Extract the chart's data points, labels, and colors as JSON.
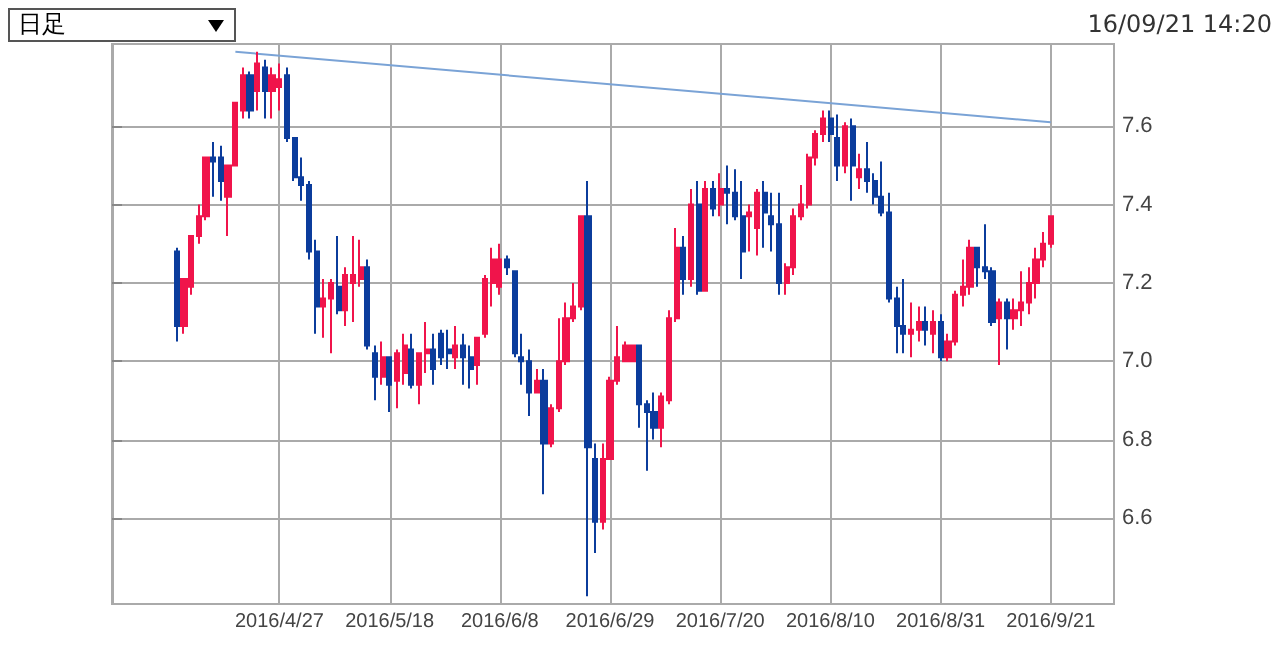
{
  "chart_data": {
    "type": "candlestick",
    "annotations": [
      "日足",
      "16/09/21 14:20"
    ],
    "categories": [
      null,
      null,
      null,
      null,
      null,
      null,
      null,
      null,
      null,
      null,
      null,
      null,
      null,
      null,
      "2016/4/27",
      null,
      null,
      null,
      null,
      null,
      null,
      null,
      null,
      null,
      null,
      null,
      null,
      null,
      null,
      "2016/5/18",
      null,
      null,
      null,
      null,
      null,
      null,
      null,
      null,
      null,
      null,
      null,
      null,
      null,
      null,
      "2016/6/8",
      null,
      null,
      null,
      null,
      null,
      null,
      null,
      null,
      null,
      null,
      null,
      null,
      null,
      null,
      "2016/6/29",
      null,
      null,
      null,
      null,
      null,
      null,
      null,
      null,
      null,
      null,
      null,
      null,
      null,
      null,
      "2016/7/20",
      null,
      null,
      null,
      null,
      null,
      null,
      null,
      null,
      null,
      null,
      null,
      null,
      null,
      null,
      "2016/8/10",
      null,
      null,
      null,
      null,
      null,
      null,
      null,
      null,
      null,
      null,
      null,
      null,
      null,
      null,
      "2016/8/31",
      null,
      null,
      null,
      null,
      null,
      null,
      null,
      null,
      null,
      null,
      null,
      null,
      null,
      null,
      "2016/9/21"
    ],
    "series": [
      {
        "type": "line",
        "color": "#7aa3d6",
        "values": [
          null,
          null,
          null,
          null,
          null,
          null,
          null,
          null,
          7.79,
          null,
          null,
          null,
          null,
          null,
          null,
          null,
          null,
          null,
          null,
          null,
          null,
          null,
          null,
          null,
          null,
          null,
          null,
          null,
          null,
          null,
          null,
          null,
          null,
          null,
          null,
          null,
          null,
          null,
          null,
          null,
          null,
          null,
          null,
          null,
          null,
          null,
          null,
          null,
          null,
          null,
          null,
          null,
          null,
          null,
          null,
          null,
          null,
          null,
          null,
          null,
          null,
          null,
          null,
          null,
          null,
          null,
          null,
          null,
          null,
          null,
          null,
          null,
          null,
          null,
          null,
          null,
          null,
          null,
          null,
          null,
          null,
          null,
          null,
          null,
          null,
          null,
          null,
          null,
          null,
          null,
          null,
          null,
          null,
          null,
          null,
          null,
          null,
          null,
          null,
          null,
          null,
          null,
          null,
          null,
          null,
          null,
          null,
          null,
          null,
          null,
          null,
          null,
          null,
          null,
          null,
          null,
          null,
          null,
          null,
          7.61
        ]
      },
      {
        "ohlc": [
          [
            7.28,
            7.29,
            7.05,
            7.09
          ],
          [
            7.09,
            7.21,
            7.07,
            7.21
          ],
          [
            7.19,
            7.32,
            7.17,
            7.32
          ],
          [
            7.32,
            7.4,
            7.3,
            7.37
          ],
          [
            7.37,
            7.52,
            7.36,
            7.52
          ],
          [
            7.52,
            7.56,
            7.42,
            7.51
          ],
          [
            7.52,
            7.55,
            7.41,
            7.46
          ],
          [
            7.42,
            7.5,
            7.32,
            7.5
          ],
          [
            7.5,
            7.66,
            7.5,
            7.66
          ],
          [
            7.64,
            7.75,
            7.62,
            7.73
          ],
          [
            7.73,
            7.74,
            7.62,
            7.64
          ],
          [
            7.69,
            7.79,
            7.64,
            7.76
          ],
          [
            7.75,
            7.77,
            7.62,
            7.69
          ],
          [
            7.69,
            7.75,
            7.62,
            7.73
          ],
          [
            7.7,
            7.76,
            7.64,
            7.72
          ],
          [
            7.73,
            7.75,
            7.56,
            7.57
          ],
          [
            7.57,
            7.57,
            7.46,
            7.47
          ],
          [
            7.47,
            7.52,
            7.41,
            7.45
          ],
          [
            7.45,
            7.46,
            7.26,
            7.28
          ],
          [
            7.28,
            7.31,
            7.07,
            7.14
          ],
          [
            7.14,
            7.21,
            7.06,
            7.16
          ],
          [
            7.16,
            7.21,
            7.02,
            7.2
          ],
          [
            7.19,
            7.32,
            7.12,
            7.13
          ],
          [
            7.13,
            7.24,
            7.09,
            7.22
          ],
          [
            7.2,
            7.32,
            7.1,
            7.22
          ],
          [
            7.21,
            7.31,
            7.19,
            7.24
          ],
          [
            7.24,
            7.26,
            7.03,
            7.04
          ],
          [
            7.02,
            7.04,
            6.9,
            6.96
          ],
          [
            6.96,
            7.05,
            6.94,
            7.01
          ],
          [
            7.01,
            7.01,
            6.87,
            6.94
          ],
          [
            6.95,
            7.03,
            6.88,
            7.02
          ],
          [
            6.97,
            7.07,
            6.94,
            7.04
          ],
          [
            7.03,
            7.07,
            6.93,
            6.94
          ],
          [
            6.94,
            7.02,
            6.89,
            7.02
          ],
          [
            7.02,
            7.1,
            6.97,
            7.03
          ],
          [
            7.03,
            7.07,
            6.94,
            6.98
          ],
          [
            7.07,
            7.08,
            6.99,
            7.01
          ],
          [
            7.03,
            7.08,
            6.98,
            7.02
          ],
          [
            7.01,
            7.09,
            6.98,
            7.04
          ],
          [
            7.04,
            7.07,
            6.94,
            7.01
          ],
          [
            7.01,
            7.04,
            6.93,
            6.98
          ],
          [
            6.99,
            7.06,
            6.94,
            7.06
          ],
          [
            7.07,
            7.22,
            7.06,
            7.21
          ],
          [
            7.2,
            7.29,
            7.14,
            7.26
          ],
          [
            7.19,
            7.3,
            7.17,
            7.26
          ],
          [
            7.26,
            7.27,
            7.22,
            7.24
          ],
          [
            7.23,
            7.23,
            7.01,
            7.02
          ],
          [
            7.01,
            7.07,
            6.94,
            7.0
          ],
          [
            7.0,
            7.03,
            6.86,
            6.92
          ],
          [
            6.92,
            6.98,
            6.92,
            6.95
          ],
          [
            6.95,
            6.98,
            6.66,
            6.79
          ],
          [
            6.79,
            6.89,
            6.78,
            6.88
          ],
          [
            6.88,
            7.11,
            6.87,
            7.0
          ],
          [
            7.0,
            7.15,
            6.99,
            7.11
          ],
          [
            7.11,
            7.2,
            7.1,
            7.14
          ],
          [
            7.14,
            7.37,
            7.13,
            7.37
          ],
          [
            7.37,
            7.46,
            6.4,
            6.78
          ],
          [
            6.75,
            6.79,
            6.51,
            6.59
          ],
          [
            6.59,
            6.79,
            6.57,
            6.75
          ],
          [
            6.75,
            6.96,
            6.75,
            6.95
          ],
          [
            6.95,
            7.09,
            6.94,
            7.01
          ],
          [
            7.0,
            7.05,
            7.0,
            7.04
          ],
          [
            7.0,
            7.04,
            7.0,
            7.04
          ],
          [
            7.04,
            7.04,
            6.83,
            6.89
          ],
          [
            6.89,
            6.9,
            6.72,
            6.87
          ],
          [
            6.87,
            6.92,
            6.8,
            6.83
          ],
          [
            6.83,
            6.92,
            6.78,
            6.91
          ],
          [
            6.9,
            7.13,
            6.89,
            7.11
          ],
          [
            7.11,
            7.34,
            7.1,
            7.29
          ],
          [
            7.29,
            7.32,
            7.17,
            7.21
          ],
          [
            7.21,
            7.44,
            7.19,
            7.4
          ],
          [
            7.4,
            7.46,
            7.17,
            7.18
          ],
          [
            7.18,
            7.46,
            7.18,
            7.44
          ],
          [
            7.44,
            7.46,
            7.37,
            7.39
          ],
          [
            7.4,
            7.48,
            7.37,
            7.44
          ],
          [
            7.44,
            7.5,
            7.35,
            7.43
          ],
          [
            7.43,
            7.49,
            7.36,
            7.37
          ],
          [
            7.37,
            7.46,
            7.21,
            7.28
          ],
          [
            7.37,
            7.4,
            7.28,
            7.38
          ],
          [
            7.34,
            7.44,
            7.27,
            7.43
          ],
          [
            7.43,
            7.46,
            7.29,
            7.38
          ],
          [
            7.37,
            7.43,
            7.28,
            7.35
          ],
          [
            7.35,
            7.43,
            7.17,
            7.2
          ],
          [
            7.2,
            7.25,
            7.17,
            7.24
          ],
          [
            7.24,
            7.39,
            7.22,
            7.37
          ],
          [
            7.37,
            7.45,
            7.36,
            7.4
          ],
          [
            7.4,
            7.53,
            7.39,
            7.52
          ],
          [
            7.52,
            7.59,
            7.5,
            7.58
          ],
          [
            7.58,
            7.64,
            7.56,
            7.62
          ],
          [
            7.62,
            7.64,
            7.56,
            7.58
          ],
          [
            7.57,
            7.63,
            7.46,
            7.5
          ],
          [
            7.5,
            7.61,
            7.48,
            7.6
          ],
          [
            7.6,
            7.62,
            7.41,
            7.5
          ],
          [
            7.47,
            7.53,
            7.44,
            7.49
          ],
          [
            7.49,
            7.56,
            7.43,
            7.46
          ],
          [
            7.46,
            7.48,
            7.4,
            7.42
          ],
          [
            7.42,
            7.51,
            7.37,
            7.38
          ],
          [
            7.38,
            7.43,
            7.15,
            7.16
          ],
          [
            7.16,
            7.19,
            7.02,
            7.09
          ],
          [
            7.09,
            7.21,
            7.02,
            7.07
          ],
          [
            7.07,
            7.15,
            7.01,
            7.08
          ],
          [
            7.08,
            7.14,
            7.05,
            7.1
          ],
          [
            7.1,
            7.14,
            7.04,
            7.08
          ],
          [
            7.07,
            7.13,
            7.02,
            7.1
          ],
          [
            7.1,
            7.12,
            7.0,
            7.01
          ],
          [
            7.01,
            7.07,
            7.0,
            7.05
          ],
          [
            7.05,
            7.18,
            7.04,
            7.17
          ],
          [
            7.17,
            7.26,
            7.14,
            7.19
          ],
          [
            7.19,
            7.31,
            7.17,
            7.29
          ],
          [
            7.29,
            7.29,
            7.19,
            7.24
          ],
          [
            7.24,
            7.35,
            7.21,
            7.23
          ],
          [
            7.23,
            7.24,
            7.09,
            7.1
          ],
          [
            7.11,
            7.16,
            6.99,
            7.15
          ],
          [
            7.15,
            7.16,
            7.03,
            7.11
          ],
          [
            7.11,
            7.16,
            7.08,
            7.13
          ],
          [
            7.13,
            7.23,
            7.09,
            7.15
          ],
          [
            7.15,
            7.24,
            7.12,
            7.2
          ],
          [
            7.2,
            7.29,
            7.16,
            7.26
          ],
          [
            7.26,
            7.33,
            7.24,
            7.3
          ],
          [
            7.3,
            7.37,
            7.29,
            7.37
          ]
        ],
        "colors": [
          "#0b3c9c",
          "#f0144b",
          "#f0144b",
          "#f0144b",
          "#f0144b",
          "#0b3c9c",
          "#0b3c9c",
          "#f0144b",
          "#f0144b",
          "#f0144b",
          "#0b3c9c",
          "#f0144b",
          "#0b3c9c",
          "#f0144b",
          "#f0144b",
          "#0b3c9c",
          "#0b3c9c",
          "#0b3c9c",
          "#0b3c9c",
          "#0b3c9c",
          "#f0144b",
          "#f0144b",
          "#0b3c9c",
          "#f0144b",
          "#f0144b",
          "#f0144b",
          "#0b3c9c",
          "#0b3c9c",
          "#f0144b",
          "#0b3c9c",
          "#f0144b",
          "#f0144b",
          "#0b3c9c",
          "#f0144b",
          "#f0144b",
          "#0b3c9c",
          "#0b3c9c",
          "#0b3c9c",
          "#f0144b",
          "#0b3c9c",
          "#0b3c9c",
          "#f0144b",
          "#f0144b",
          "#f0144b",
          "#f0144b",
          "#0b3c9c",
          "#0b3c9c",
          "#0b3c9c",
          "#0b3c9c",
          "#f0144b",
          "#0b3c9c",
          "#f0144b",
          "#f0144b",
          "#f0144b",
          "#f0144b",
          "#f0144b",
          "#0b3c9c",
          "#0b3c9c",
          "#f0144b",
          "#f0144b",
          "#f0144b",
          "#f0144b",
          "#f0144b",
          "#0b3c9c",
          "#0b3c9c",
          "#0b3c9c",
          "#f0144b",
          "#f0144b",
          "#f0144b",
          "#0b3c9c",
          "#f0144b",
          "#0b3c9c",
          "#f0144b",
          "#0b3c9c",
          "#f0144b",
          "#0b3c9c",
          "#0b3c9c",
          "#0b3c9c",
          "#f0144b",
          "#f0144b",
          "#0b3c9c",
          "#0b3c9c",
          "#0b3c9c",
          "#f0144b",
          "#f0144b",
          "#f0144b",
          "#f0144b",
          "#f0144b",
          "#f0144b",
          "#0b3c9c",
          "#0b3c9c",
          "#f0144b",
          "#0b3c9c",
          "#f0144b",
          "#0b3c9c",
          "#0b3c9c",
          "#0b3c9c",
          "#0b3c9c",
          "#0b3c9c",
          "#0b3c9c",
          "#f0144b",
          "#f0144b",
          "#0b3c9c",
          "#f0144b",
          "#0b3c9c",
          "#f0144b",
          "#f0144b",
          "#f0144b",
          "#f0144b",
          "#0b3c9c",
          "#0b3c9c",
          "#0b3c9c",
          "#f0144b",
          "#0b3c9c",
          "#f0144b",
          "#f0144b",
          "#f0144b",
          "#f0144b",
          "#f0144b",
          "#f0144b"
        ]
      }
    ],
    "ylim": [
      6.38,
      7.81
    ],
    "yticks": [
      6.6,
      6.8,
      {
        "value": 7,
        "label": "7.0"
      },
      7.2,
      7.4,
      7.6
    ],
    "grid": true
  }
}
